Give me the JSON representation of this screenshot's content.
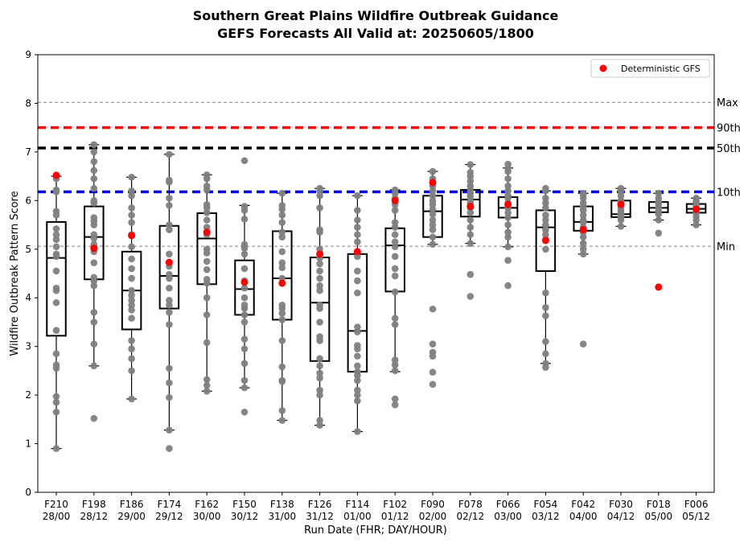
{
  "chart_data": {
    "type": "box",
    "title": "Southern Great Plains Wildfire Outbreak Guidance",
    "subtitle": "GEFS Forecasts All Valid at: 20250605/1800",
    "xlabel": "Run Date (FHR; DAY/HOUR)",
    "ylabel": "Wildfire Outbreak Pattern Score",
    "ylim": [
      0,
      9
    ],
    "yticks": [
      "0",
      "1",
      "2",
      "3",
      "4",
      "5",
      "6",
      "7",
      "8",
      "9"
    ],
    "legend": {
      "position": "top-right",
      "label": "Deterministic GFS"
    },
    "colors": {
      "ensemble": "#808080",
      "deterministic": "#ff0000",
      "box": "#000000"
    },
    "reference_lines": [
      {
        "label": "Max",
        "value": 8.02,
        "color": "#808080",
        "style": "thin-dashed"
      },
      {
        "label": "90th",
        "value": 7.5,
        "color": "#ff0000",
        "style": "thick-dashed"
      },
      {
        "label": "50th",
        "value": 7.08,
        "color": "#000000",
        "style": "thick-dashed"
      },
      {
        "label": "10th",
        "value": 6.18,
        "color": "#0000ff",
        "style": "thick-dashed"
      },
      {
        "label": "Min",
        "value": 5.06,
        "color": "#808080",
        "style": "thin-dashed"
      }
    ],
    "categories": [
      {
        "fhr": "F210",
        "date": "28/00",
        "whisker_low": 0.9,
        "q1": 3.22,
        "median": 4.82,
        "q3": 5.56,
        "whisker_high": 6.5,
        "det": 6.52,
        "members": [
          0.9,
          1.65,
          1.85,
          1.97,
          2.55,
          2.62,
          2.85,
          3.33,
          3.9,
          4.15,
          4.2,
          4.55,
          4.85,
          4.9,
          5.05,
          5.2,
          5.3,
          5.42,
          5.7,
          5.78,
          6.18,
          6.22,
          6.45,
          6.5
        ]
      },
      {
        "fhr": "F198",
        "date": "28/12",
        "whisker_low": 2.6,
        "q1": 4.38,
        "median": 5.25,
        "q3": 5.88,
        "whisker_high": 7.15,
        "det": 5.02,
        "members": [
          1.52,
          2.6,
          3.05,
          3.5,
          3.7,
          4.25,
          4.35,
          4.42,
          4.72,
          4.95,
          5.1,
          5.22,
          5.3,
          5.5,
          5.58,
          5.65,
          5.95,
          6.0,
          6.25,
          6.45,
          6.62,
          6.8,
          7.0,
          7.15
        ]
      },
      {
        "fhr": "F186",
        "date": "29/00",
        "whisker_low": 1.92,
        "q1": 3.35,
        "median": 4.15,
        "q3": 4.95,
        "whisker_high": 6.48,
        "det": 5.28,
        "members": [
          1.92,
          2.5,
          2.75,
          2.95,
          3.12,
          3.58,
          3.75,
          3.85,
          3.95,
          4.05,
          4.15,
          4.4,
          4.6,
          4.8,
          5.05,
          5.3,
          5.55,
          5.7,
          5.85,
          6.1,
          6.2,
          6.48
        ]
      },
      {
        "fhr": "F174",
        "date": "29/12",
        "whisker_low": 1.28,
        "q1": 3.78,
        "median": 4.45,
        "q3": 5.48,
        "whisker_high": 6.95,
        "det": 4.73,
        "members": [
          0.9,
          1.28,
          1.95,
          2.25,
          2.55,
          3.45,
          3.7,
          3.85,
          3.95,
          4.2,
          4.4,
          4.48,
          4.65,
          4.9,
          5.4,
          5.5,
          5.9,
          6.05,
          6.38,
          6.42,
          6.95
        ]
      },
      {
        "fhr": "F162",
        "date": "30/00",
        "whisker_low": 2.08,
        "q1": 4.28,
        "median": 5.22,
        "q3": 5.74,
        "whisker_high": 6.53,
        "det": 5.35,
        "members": [
          2.08,
          2.2,
          2.32,
          3.08,
          3.65,
          4.0,
          4.3,
          4.38,
          4.58,
          4.75,
          4.92,
          5.0,
          5.3,
          5.45,
          5.6,
          5.75,
          5.85,
          5.92,
          6.22,
          6.3,
          6.45,
          6.53
        ]
      },
      {
        "fhr": "F150",
        "date": "30/12",
        "whisker_low": 2.15,
        "q1": 3.65,
        "median": 4.18,
        "q3": 4.77,
        "whisker_high": 5.9,
        "det": 4.32,
        "members": [
          1.65,
          2.15,
          2.3,
          2.65,
          2.95,
          3.15,
          3.5,
          3.65,
          3.78,
          3.85,
          4.0,
          4.2,
          4.35,
          4.6,
          4.9,
          5.02,
          5.1,
          5.62,
          5.8,
          5.88,
          6.82
        ]
      },
      {
        "fhr": "F138",
        "date": "31/00",
        "whisker_low": 1.48,
        "q1": 3.55,
        "median": 4.4,
        "q3": 5.37,
        "whisker_high": 6.15,
        "det": 4.3,
        "members": [
          1.48,
          1.68,
          2.28,
          2.3,
          2.58,
          3.12,
          3.55,
          3.68,
          3.78,
          3.85,
          4.4,
          4.62,
          4.72,
          4.95,
          5.25,
          5.35,
          5.55,
          5.7,
          5.82,
          5.9,
          6.15
        ]
      },
      {
        "fhr": "F126",
        "date": "31/12",
        "whisker_low": 1.38,
        "q1": 2.7,
        "median": 3.9,
        "q3": 4.83,
        "whisker_high": 6.25,
        "det": 4.9,
        "members": [
          1.38,
          1.48,
          2.0,
          2.1,
          2.35,
          2.45,
          2.6,
          2.75,
          3.12,
          3.2,
          3.5,
          3.78,
          3.85,
          4.15,
          4.25,
          4.4,
          4.55,
          4.7,
          4.82,
          5.0,
          5.35,
          5.4,
          5.85,
          6.1,
          6.2,
          6.25
        ]
      },
      {
        "fhr": "F114",
        "date": "01/00",
        "whisker_low": 1.25,
        "q1": 2.48,
        "median": 3.32,
        "q3": 4.9,
        "whisker_high": 6.1,
        "det": 4.95,
        "members": [
          1.25,
          1.88,
          2.0,
          2.1,
          2.3,
          2.4,
          2.48,
          2.6,
          2.8,
          2.95,
          3.02,
          3.3,
          3.4,
          4.1,
          4.35,
          4.55,
          4.85,
          5.15,
          5.3,
          5.45,
          5.6,
          5.8,
          6.1
        ]
      },
      {
        "fhr": "F102",
        "date": "01/12",
        "whisker_low": 2.48,
        "q1": 4.13,
        "median": 5.08,
        "q3": 5.43,
        "whisker_high": 6.22,
        "det": 6.0,
        "members": [
          1.8,
          1.92,
          2.5,
          2.62,
          2.72,
          3.45,
          3.58,
          4.12,
          4.45,
          4.6,
          4.85,
          5.05,
          5.15,
          5.3,
          5.45,
          5.55,
          5.8,
          5.92,
          6.05,
          6.15,
          6.22
        ]
      },
      {
        "fhr": "F090",
        "date": "02/00",
        "whisker_low": 5.1,
        "q1": 5.25,
        "median": 5.78,
        "q3": 6.1,
        "whisker_high": 6.6,
        "det": 6.37,
        "members": [
          2.22,
          2.47,
          2.8,
          2.88,
          3.05,
          3.77,
          5.1,
          5.25,
          5.4,
          5.5,
          5.6,
          5.72,
          5.82,
          5.92,
          6.0,
          6.1,
          6.2,
          6.3,
          6.45,
          6.6
        ]
      },
      {
        "fhr": "F078",
        "date": "02/12",
        "whisker_low": 5.12,
        "q1": 5.67,
        "median": 6.02,
        "q3": 6.22,
        "whisker_high": 6.74,
        "det": 5.88,
        "members": [
          4.03,
          4.48,
          5.12,
          5.3,
          5.45,
          5.6,
          5.75,
          5.85,
          5.95,
          6.0,
          6.08,
          6.15,
          6.22,
          6.3,
          6.4,
          6.5,
          6.58,
          6.74
        ]
      },
      {
        "fhr": "F066",
        "date": "03/00",
        "whisker_low": 5.05,
        "q1": 5.65,
        "median": 5.85,
        "q3": 6.07,
        "whisker_high": 6.67,
        "det": 5.92,
        "members": [
          4.25,
          4.77,
          5.05,
          5.25,
          5.35,
          5.5,
          5.65,
          5.75,
          5.85,
          5.95,
          6.05,
          6.1,
          6.2,
          6.3,
          6.45,
          6.6,
          6.67,
          6.75
        ]
      },
      {
        "fhr": "F054",
        "date": "03/12",
        "whisker_low": 2.65,
        "q1": 4.55,
        "median": 5.45,
        "q3": 5.8,
        "whisker_high": 6.2,
        "det": 5.18,
        "members": [
          2.57,
          2.65,
          2.85,
          3.1,
          3.63,
          3.8,
          4.1,
          5.0,
          5.2,
          5.3,
          5.4,
          5.5,
          5.6,
          5.7,
          5.85,
          5.95,
          6.05,
          6.2,
          6.25
        ]
      },
      {
        "fhr": "F042",
        "date": "04/00",
        "whisker_low": 4.9,
        "q1": 5.38,
        "median": 5.56,
        "q3": 5.88,
        "whisker_high": 6.15,
        "det": 5.4,
        "members": [
          3.05,
          4.9,
          5.0,
          5.12,
          5.25,
          5.35,
          5.45,
          5.55,
          5.6,
          5.7,
          5.8,
          5.88,
          5.95,
          6.05,
          6.12,
          6.15
        ]
      },
      {
        "fhr": "F030",
        "date": "04/12",
        "whisker_low": 5.47,
        "q1": 5.66,
        "median": 5.72,
        "q3": 6.0,
        "whisker_high": 6.25,
        "det": 5.92,
        "members": [
          5.47,
          5.6,
          5.66,
          5.72,
          5.78,
          5.85,
          5.95,
          6.0,
          6.1,
          6.2,
          6.25
        ]
      },
      {
        "fhr": "F018",
        "date": "05/00",
        "whisker_low": 5.6,
        "q1": 5.76,
        "median": 5.85,
        "q3": 5.97,
        "whisker_high": 6.15,
        "det": 4.22,
        "members": [
          5.33,
          5.6,
          5.72,
          5.78,
          5.85,
          5.92,
          5.97,
          6.05,
          6.15
        ]
      },
      {
        "fhr": "F006",
        "date": "05/12",
        "whisker_low": 5.5,
        "q1": 5.75,
        "median": 5.83,
        "q3": 5.93,
        "whisker_high": 6.05,
        "det": 5.82,
        "members": [
          5.5,
          5.6,
          5.68,
          5.75,
          5.8,
          5.85,
          5.9,
          5.95,
          6.0,
          6.05
        ]
      }
    ]
  }
}
